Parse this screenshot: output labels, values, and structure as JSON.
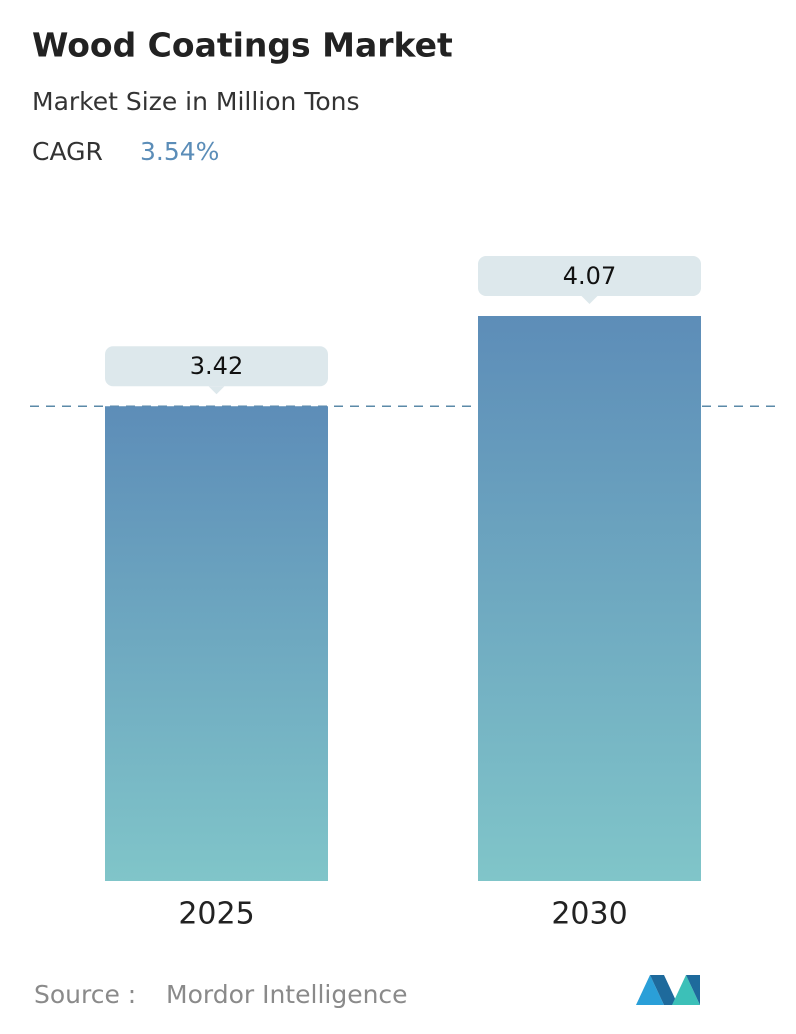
{
  "chart_data": {
    "type": "bar",
    "title": "Wood Coatings Market",
    "subtitle": "Market Size in Million Tons",
    "cagr_label": "CAGR",
    "cagr": "3.54%",
    "categories": [
      "2025",
      "2030"
    ],
    "values": [
      3.42,
      4.07
    ],
    "colors": [
      "#5d8db8",
      "#80c5c9"
    ],
    "source_label": "Source :",
    "source": "Mordor Intelligence"
  }
}
